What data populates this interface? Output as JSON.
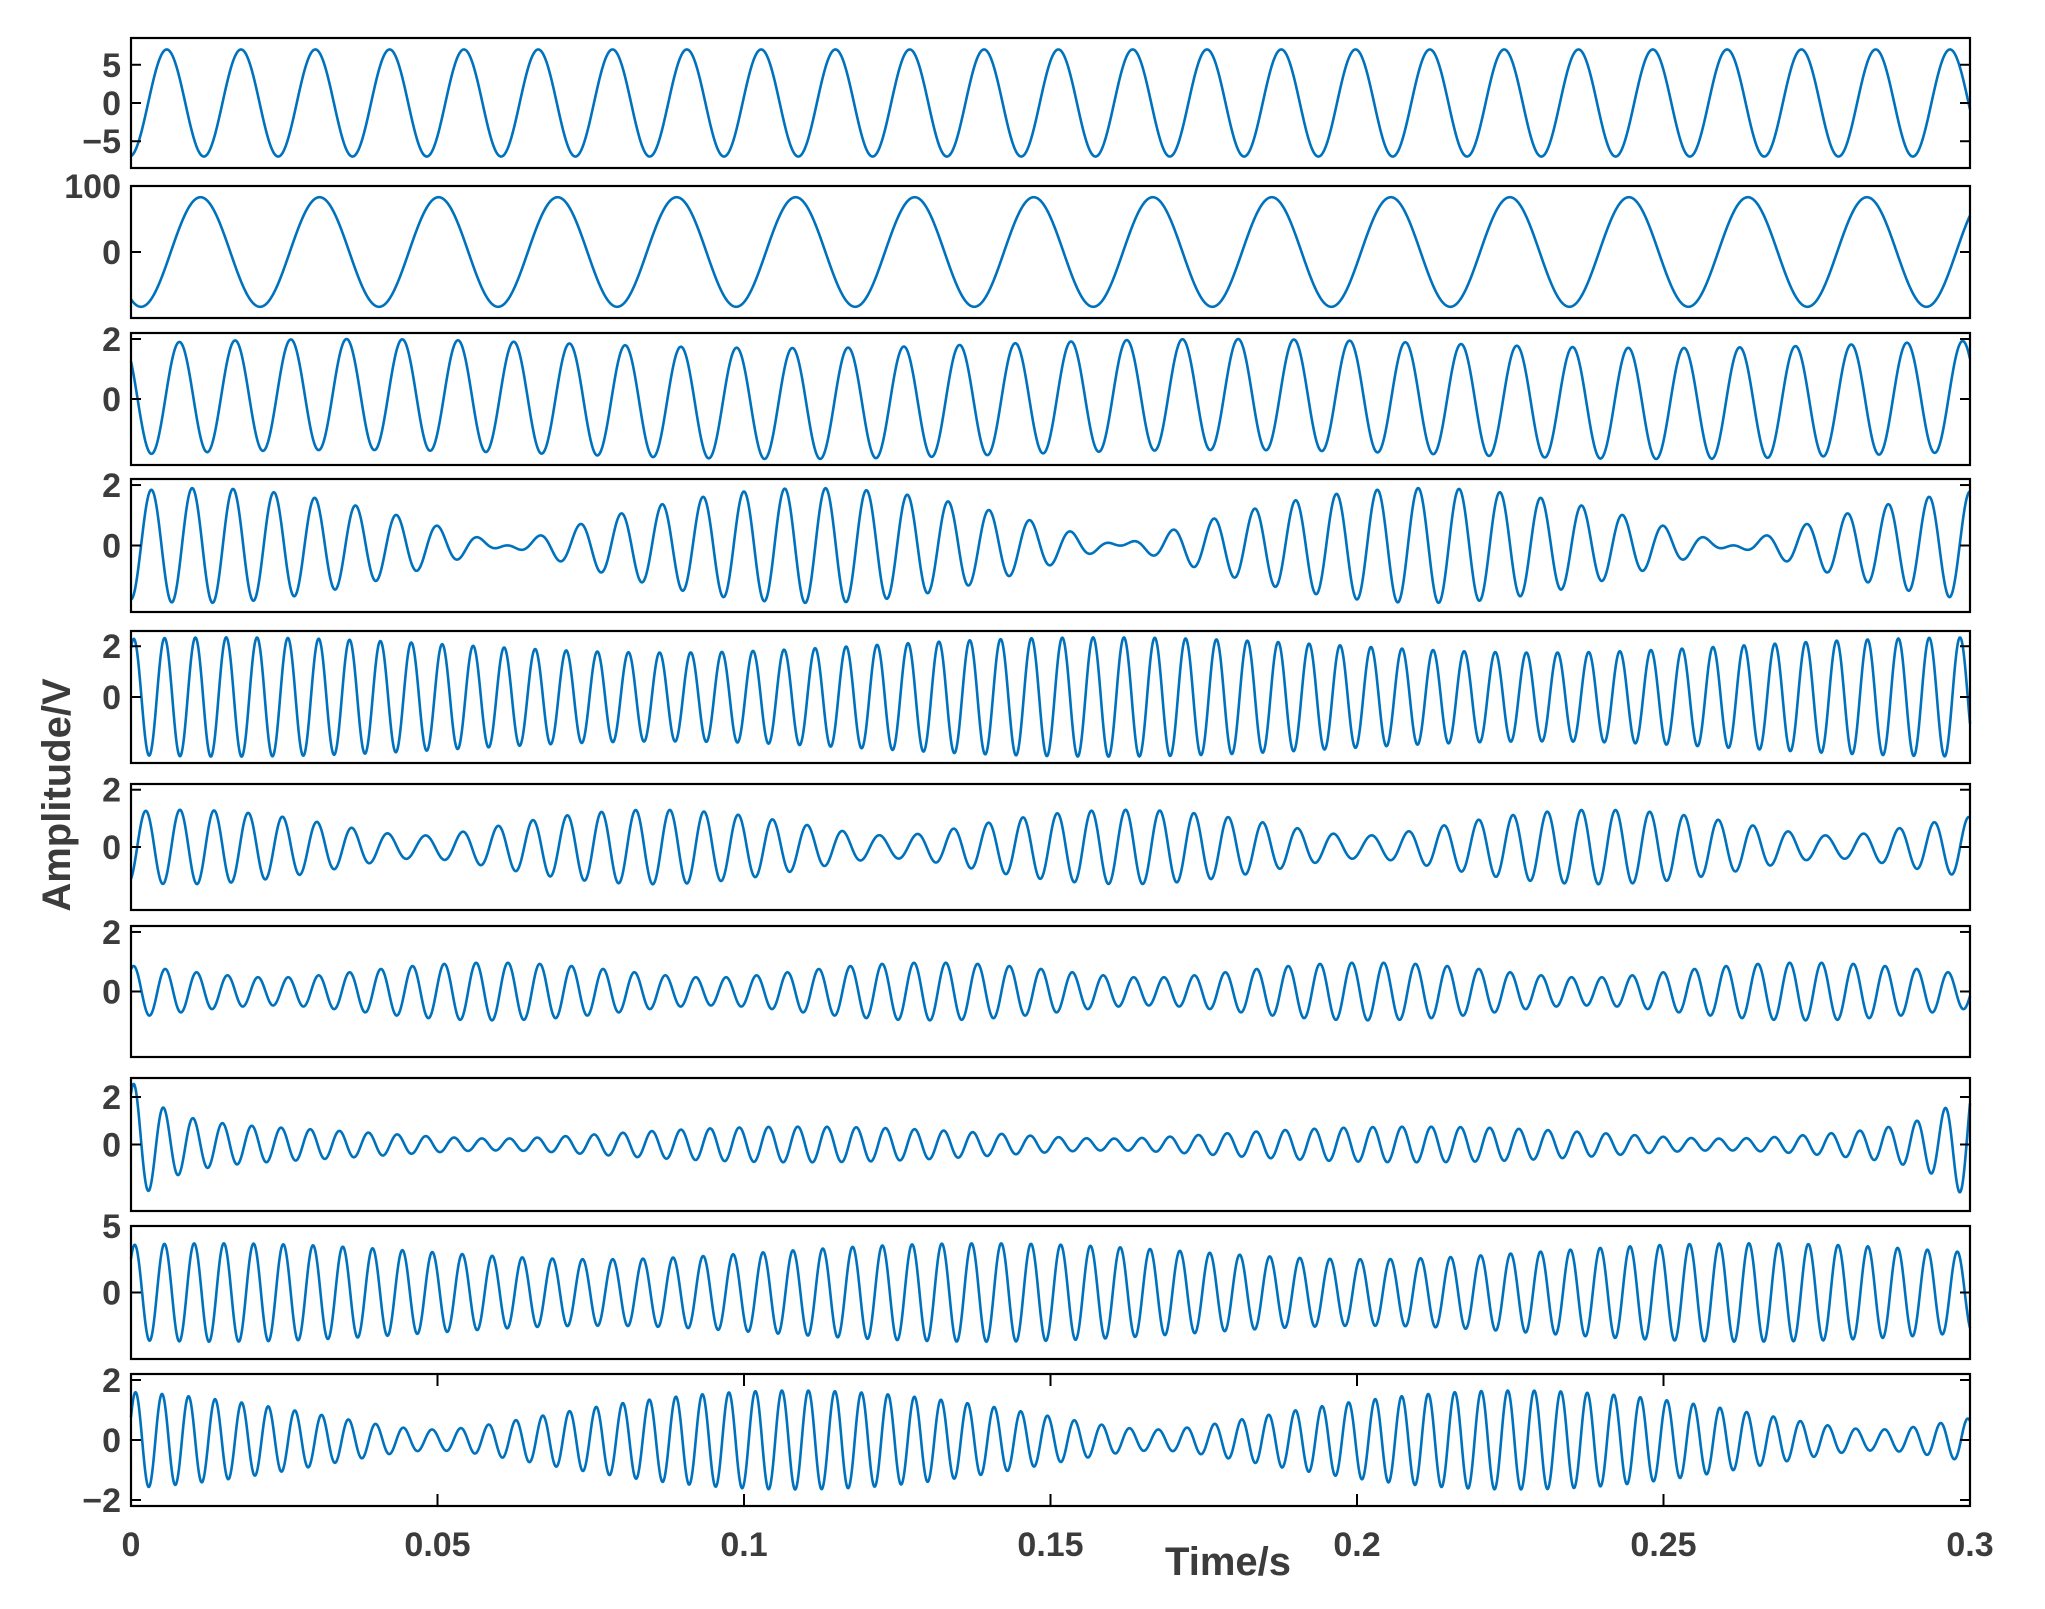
{
  "chart_data": {
    "type": "line",
    "xlabel": "Time/s",
    "ylabel": "Amplitude/V",
    "xlim": [
      0,
      0.3
    ],
    "xticks": [
      0,
      0.05,
      0.1,
      0.15,
      0.2,
      0.25,
      0.3
    ],
    "xtick_labels": [
      "0",
      "0.05",
      "0.1",
      "0.15",
      "0.2",
      "0.25",
      "0.3"
    ],
    "color": "#0072bd",
    "grid": false,
    "legend": "none",
    "panels": [
      {
        "ylim": [
          -8.5,
          8.5
        ],
        "yticks": [
          -5,
          0,
          5
        ],
        "ytick_labels": [
          "−5",
          "0",
          "5"
        ],
        "components": [
          {
            "amp": 7.0,
            "freq": 82.5,
            "phase": -1.45
          }
        ]
      },
      {
        "ylim": [
          -100,
          100
        ],
        "yticks": [
          0,
          100
        ],
        "ytick_labels": [
          "0",
          "100"
        ],
        "components": [
          {
            "amp": 83,
            "freq": 51.5,
            "phase": -2.1
          }
        ]
      },
      {
        "ylim": [
          -2.2,
          2.2
        ],
        "yticks": [
          0,
          2
        ],
        "ytick_labels": [
          "0",
          "2"
        ],
        "components": [
          {
            "amp": 1.85,
            "freq": 110,
            "phase": 2.4
          },
          {
            "amp": 0.15,
            "freq": 7,
            "phase": 0
          }
        ]
      },
      {
        "ylim": [
          -2.2,
          2.2
        ],
        "yticks": [
          0,
          2
        ],
        "ytick_labels": [
          "0",
          "2"
        ],
        "components": [
          {
            "amp": 0.95,
            "freq": 145,
            "phase": -1.2
          },
          {
            "amp": 0.95,
            "freq": 155,
            "phase": -1.9
          }
        ]
      },
      {
        "ylim": [
          -2.6,
          2.6
        ],
        "yticks": [
          0,
          2
        ],
        "ytick_labels": [
          "0",
          "2"
        ],
        "components": [
          {
            "amp": 2.05,
            "freq": 198,
            "phase": 1.1
          },
          {
            "amp": 0.3,
            "freq": 205,
            "phase": 0.4
          }
        ]
      },
      {
        "ylim": [
          -2.2,
          2.2
        ],
        "yticks": [
          0,
          2
        ],
        "ytick_labels": [
          "0",
          "2"
        ],
        "components": [
          {
            "amp": 0.85,
            "freq": 175,
            "phase": -0.9
          },
          {
            "amp": 0.45,
            "freq": 188,
            "phase": -1.6
          }
        ]
      },
      {
        "ylim": [
          -2.2,
          2.2
        ],
        "yticks": [
          0,
          2
        ],
        "ytick_labels": [
          "0",
          "2"
        ],
        "components": [
          {
            "amp": 0.72,
            "freq": 196,
            "phase": 1.3
          },
          {
            "amp": 0.25,
            "freq": 182,
            "phase": 0.2
          }
        ]
      },
      {
        "ylim": [
          -2.8,
          2.8
        ],
        "yticks": [
          0,
          2
        ],
        "ytick_labels": [
          "0",
          "2"
        ],
        "components": [
          {
            "amp": 0.5,
            "freq": 213,
            "phase": 0.5
          },
          {
            "amp": 0.25,
            "freq": 203,
            "phase": 1.1
          }
        ],
        "edge_burst": {
          "amp": 2.0,
          "decay": 0.006
        }
      },
      {
        "ylim": [
          -5,
          5
        ],
        "yticks": [
          0,
          5
        ],
        "ytick_labels": [
          "0",
          "5"
        ],
        "components": [
          {
            "amp": 3.1,
            "freq": 205,
            "phase": 0.9
          },
          {
            "amp": 0.6,
            "freq": 213,
            "phase": 0.2
          }
        ]
      },
      {
        "ylim": [
          -2.2,
          2.2
        ],
        "yticks": [
          -2,
          0,
          2
        ],
        "ytick_labels": [
          "−2",
          "0",
          "2"
        ],
        "components": [
          {
            "amp": 1.0,
            "freq": 228,
            "phase": 0.3
          },
          {
            "amp": 0.65,
            "freq": 236.5,
            "phase": 0.8
          }
        ]
      }
    ]
  }
}
